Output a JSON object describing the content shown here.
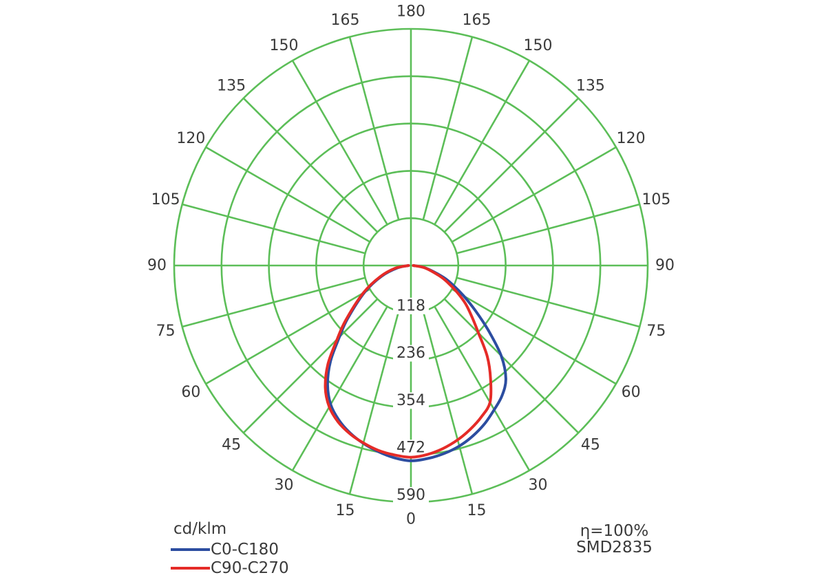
{
  "page": {
    "background": "#ffffff"
  },
  "legend": {
    "units": "cd/klm",
    "items": [
      {
        "label": "C0-C180",
        "color": "#2c4da0"
      },
      {
        "label": "C90-C270",
        "color": "#e52b27"
      }
    ]
  },
  "annotations": {
    "efficiency": "η=100%",
    "chip": "SMD2835"
  },
  "chart_data": {
    "type": "polar",
    "title": "",
    "units": "cd/klm",
    "grid_color": "#5cbe58",
    "text_color": "#3a3a3a",
    "background": "#ffffff",
    "angle_step_deg": 15,
    "max_value": 590,
    "ring_values": [
      118,
      236,
      354,
      472,
      590
    ],
    "angle_labels": [
      {
        "angle": 0,
        "text": "0"
      },
      {
        "angle": 15,
        "text": "15"
      },
      {
        "angle": -15,
        "text": "15"
      },
      {
        "angle": 30,
        "text": "30"
      },
      {
        "angle": -30,
        "text": "30"
      },
      {
        "angle": 45,
        "text": "45"
      },
      {
        "angle": -45,
        "text": "45"
      },
      {
        "angle": 60,
        "text": "60"
      },
      {
        "angle": -60,
        "text": "60"
      },
      {
        "angle": 75,
        "text": "75"
      },
      {
        "angle": -75,
        "text": "75"
      },
      {
        "angle": 90,
        "text": "90"
      },
      {
        "angle": -90,
        "text": "90"
      },
      {
        "angle": 105,
        "text": "105"
      },
      {
        "angle": -105,
        "text": "105"
      },
      {
        "angle": 120,
        "text": "120"
      },
      {
        "angle": -120,
        "text": "120"
      },
      {
        "angle": 135,
        "text": "135"
      },
      {
        "angle": -135,
        "text": "135"
      },
      {
        "angle": 150,
        "text": "150"
      },
      {
        "angle": -150,
        "text": "150"
      },
      {
        "angle": 165,
        "text": "165"
      },
      {
        "angle": -165,
        "text": "165"
      },
      {
        "angle": 180,
        "text": "180"
      }
    ],
    "series": [
      {
        "name": "C0-C180",
        "color": "#2c4da0",
        "points": [
          [
            -90,
            6
          ],
          [
            -80,
            34
          ],
          [
            -70,
            78
          ],
          [
            -60,
            133
          ],
          [
            -50,
            206
          ],
          [
            -45,
            252
          ],
          [
            -40,
            312
          ],
          [
            -35,
            362
          ],
          [
            -30,
            400
          ],
          [
            -25,
            425
          ],
          [
            -20,
            444
          ],
          [
            -15,
            459
          ],
          [
            -10,
            471
          ],
          [
            -5,
            481
          ],
          [
            0,
            487
          ],
          [
            5,
            483
          ],
          [
            10,
            476
          ],
          [
            15,
            466
          ],
          [
            20,
            452
          ],
          [
            25,
            435
          ],
          [
            30,
            415
          ],
          [
            35,
            396
          ],
          [
            40,
            368
          ],
          [
            45,
            318
          ],
          [
            50,
            252
          ],
          [
            55,
            196
          ],
          [
            60,
            152
          ],
          [
            65,
            116
          ],
          [
            70,
            86
          ],
          [
            80,
            38
          ],
          [
            90,
            6
          ]
        ]
      },
      {
        "name": "C90-C270",
        "color": "#e52b27",
        "points": [
          [
            -90,
            6
          ],
          [
            -80,
            40
          ],
          [
            -70,
            82
          ],
          [
            -60,
            137
          ],
          [
            -50,
            212
          ],
          [
            -45,
            260
          ],
          [
            -40,
            322
          ],
          [
            -35,
            372
          ],
          [
            -30,
            407
          ],
          [
            -25,
            430
          ],
          [
            -20,
            446
          ],
          [
            -15,
            458
          ],
          [
            -10,
            468
          ],
          [
            -5,
            474
          ],
          [
            0,
            478
          ],
          [
            5,
            473
          ],
          [
            10,
            463
          ],
          [
            15,
            450
          ],
          [
            20,
            434
          ],
          [
            25,
            416
          ],
          [
            30,
            394
          ],
          [
            35,
            346
          ],
          [
            40,
            296
          ],
          [
            45,
            238
          ],
          [
            50,
            198
          ],
          [
            55,
            166
          ],
          [
            60,
            132
          ],
          [
            65,
            102
          ],
          [
            70,
            76
          ],
          [
            80,
            36
          ],
          [
            90,
            6
          ]
        ]
      }
    ],
    "layout": {
      "center_x": 597,
      "center_y": 386,
      "outer_radius_px": 344,
      "angle_label_radius_px": 369,
      "grid_stroke": 2.6,
      "curve_stroke": 4,
      "label_font_size": 22
    }
  }
}
